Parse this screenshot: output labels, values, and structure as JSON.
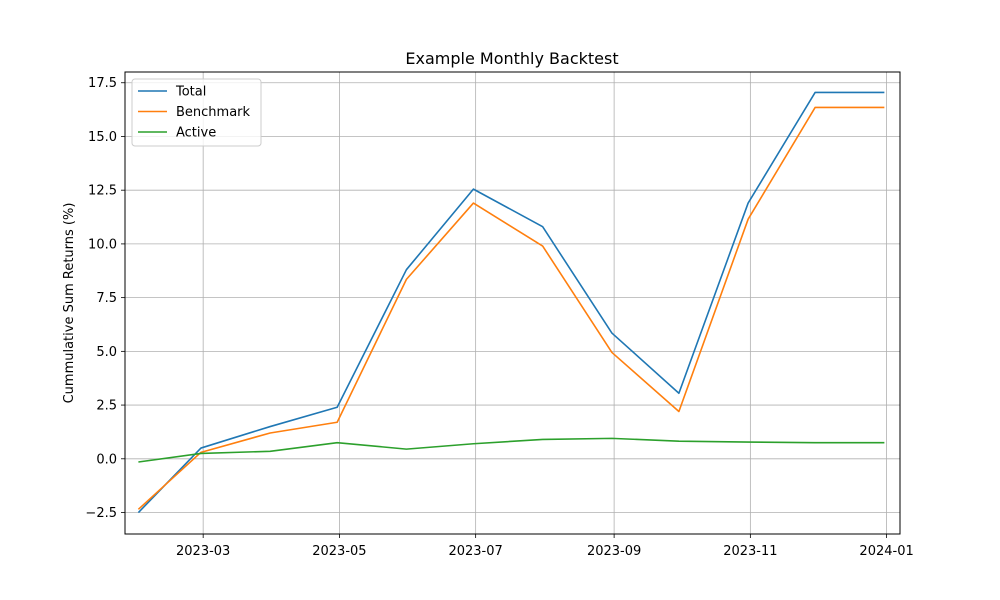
{
  "chart_data": {
    "type": "line",
    "title": "Example Monthly Backtest",
    "xlabel": "",
    "ylabel": "Cummulative Sum Returns (%)",
    "x": [
      "2023-01-31",
      "2023-02-28",
      "2023-03-31",
      "2023-04-30",
      "2023-05-31",
      "2023-06-30",
      "2023-07-31",
      "2023-08-31",
      "2023-09-30",
      "2023-10-31",
      "2023-11-30",
      "2023-12-31"
    ],
    "x_ticks": [
      "2023-03",
      "2023-05",
      "2023-07",
      "2023-09",
      "2023-11",
      "2024-01"
    ],
    "x_range": [
      "2023-01-25",
      "2024-01-07"
    ],
    "y_ticks": [
      "−2.5",
      "0.0",
      "2.5",
      "5.0",
      "7.5",
      "10.0",
      "12.5",
      "15.0",
      "17.5"
    ],
    "ylim": [
      -3.5,
      18.0
    ],
    "grid": true,
    "legend": "top-left",
    "series": [
      {
        "name": "Total",
        "color": "#1f77b4",
        "values": [
          -2.5,
          0.5,
          1.5,
          2.4,
          8.8,
          12.55,
          10.8,
          5.85,
          3.05,
          11.9,
          17.05,
          17.05
        ]
      },
      {
        "name": "Benchmark",
        "color": "#ff7f0e",
        "values": [
          -2.35,
          0.3,
          1.2,
          1.7,
          8.35,
          11.9,
          9.9,
          4.95,
          2.2,
          11.15,
          16.35,
          16.35
        ]
      },
      {
        "name": "Active",
        "color": "#2ca02c",
        "values": [
          -0.15,
          0.25,
          0.35,
          0.75,
          0.45,
          0.7,
          0.9,
          0.95,
          0.82,
          0.78,
          0.75,
          0.75
        ]
      }
    ]
  }
}
